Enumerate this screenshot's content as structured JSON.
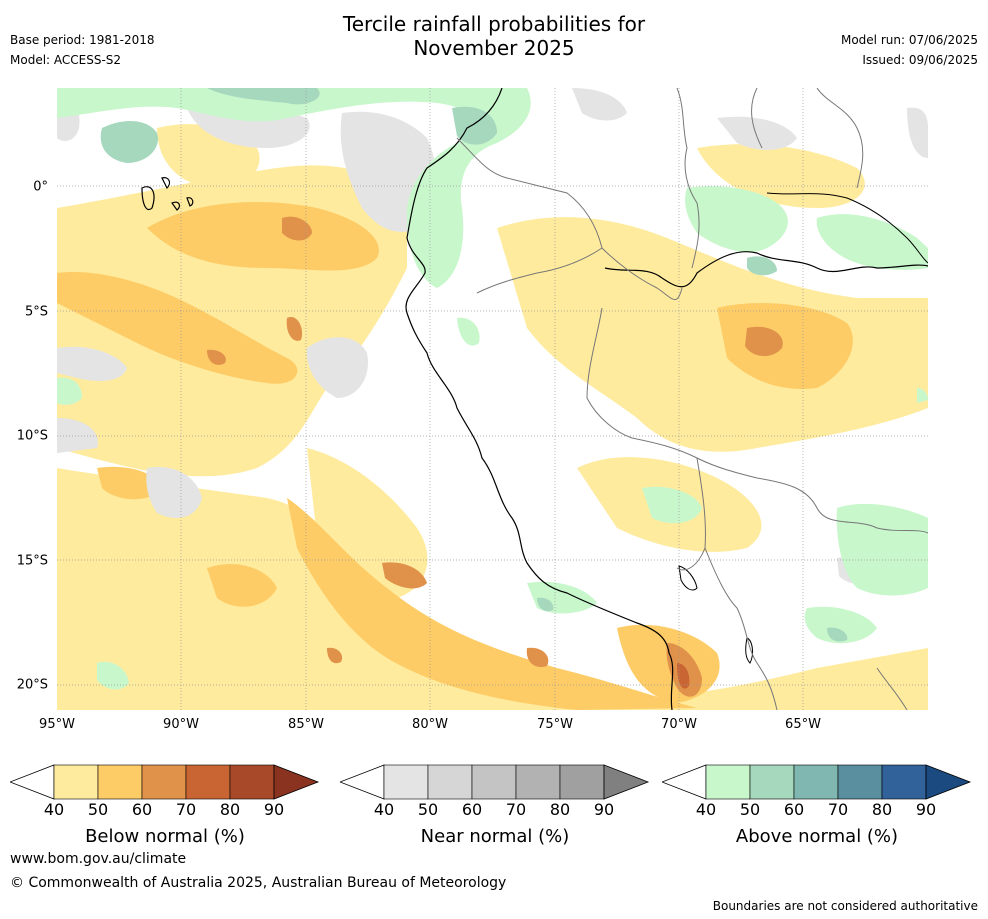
{
  "title_line1": "Tercile rainfall probabilities for",
  "title_line2": "November 2025",
  "meta": {
    "base_period": "Base period: 1981-2018",
    "model": "Model: ACCESS-S2",
    "model_run": "Model run: 07/06/2025",
    "issued": "Issued: 09/06/2025"
  },
  "map": {
    "lon_labels": [
      "95°W",
      "90°W",
      "85°W",
      "80°W",
      "75°W",
      "70°W",
      "65°W"
    ],
    "lat_labels": [
      "0°",
      "5°S",
      "10°S",
      "15°S",
      "20°S"
    ]
  },
  "colorbars": [
    {
      "title": "Below normal (%)",
      "ticks": [
        "40",
        "50",
        "60",
        "70",
        "80",
        "90"
      ],
      "colors": [
        "#ffeb9e",
        "#fdcc66",
        "#e0924a",
        "#c96433",
        "#a84a2a",
        "#8a3320"
      ]
    },
    {
      "title": "Near normal (%)",
      "ticks": [
        "40",
        "50",
        "60",
        "70",
        "80",
        "90"
      ],
      "colors": [
        "#e4e4e4",
        "#d6d6d6",
        "#c4c4c4",
        "#b2b2b2",
        "#a0a0a0",
        "#808080"
      ]
    },
    {
      "title": "Above normal (%)",
      "ticks": [
        "40",
        "50",
        "60",
        "70",
        "80",
        "90"
      ],
      "colors": [
        "#c8f7cc",
        "#a5d8bd",
        "#80b7b0",
        "#5a8fa0",
        "#31629a",
        "#1a4a80"
      ]
    }
  ],
  "footer": {
    "url": "www.bom.gov.au/climate",
    "copyright": "© Commonwealth of Australia 2025, Australian Bureau of Meteorology",
    "note": "Boundaries are not considered authoritative"
  }
}
